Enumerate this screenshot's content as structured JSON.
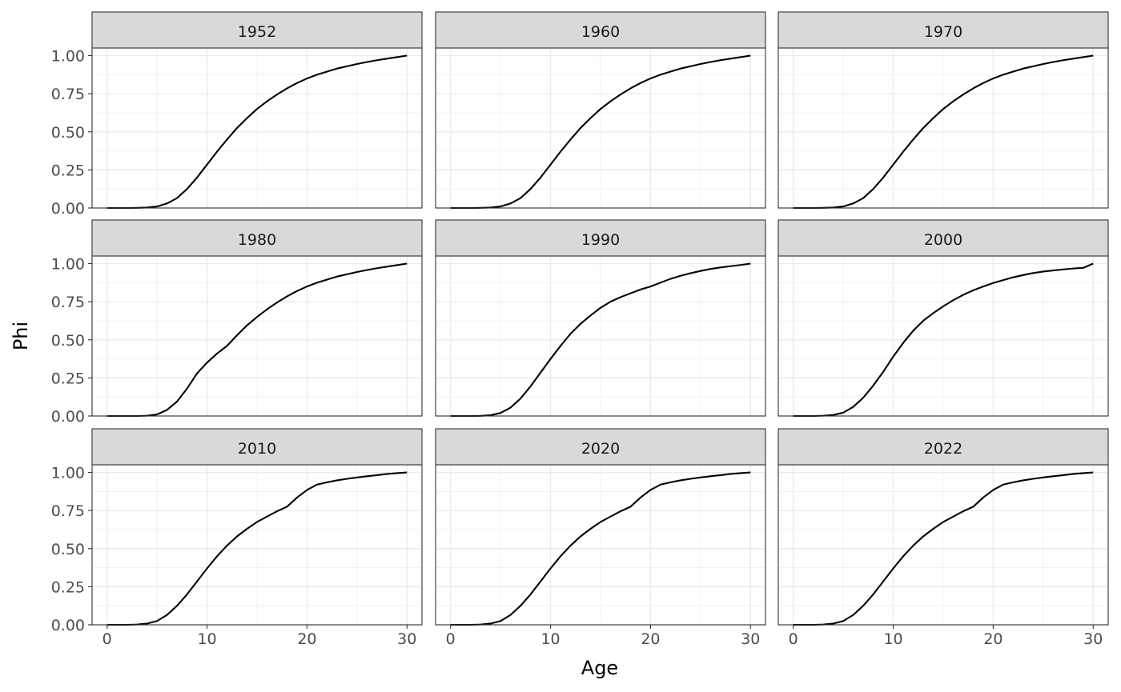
{
  "chart_data": {
    "type": "line",
    "layout": "facet-grid 3x3",
    "xlabel": "Age",
    "ylabel": "Phi",
    "xlim": [
      -1.5,
      31.5
    ],
    "ylim": [
      0,
      1.05
    ],
    "x_ticks": [
      0,
      10,
      20,
      30
    ],
    "y_ticks": [
      0.0,
      0.25,
      0.5,
      0.75,
      1.0
    ],
    "y_tick_labels": [
      "0.00",
      "0.25",
      "0.50",
      "0.75",
      "1.00"
    ],
    "x_tick_labels": [
      "0",
      "10",
      "20",
      "30"
    ],
    "x": [
      0,
      1,
      2,
      3,
      4,
      5,
      6,
      7,
      8,
      9,
      10,
      11,
      12,
      13,
      14,
      15,
      16,
      17,
      18,
      19,
      20,
      21,
      22,
      23,
      24,
      25,
      26,
      27,
      28,
      29,
      30
    ],
    "panels": [
      {
        "title": "1952",
        "values": [
          0,
          0,
          0,
          0.001,
          0.003,
          0.01,
          0.03,
          0.065,
          0.125,
          0.2,
          0.285,
          0.37,
          0.45,
          0.525,
          0.59,
          0.65,
          0.7,
          0.745,
          0.785,
          0.82,
          0.85,
          0.875,
          0.895,
          0.915,
          0.93,
          0.945,
          0.958,
          0.97,
          0.98,
          0.99,
          1.0
        ]
      },
      {
        "title": "1960",
        "values": [
          0,
          0,
          0,
          0.001,
          0.003,
          0.01,
          0.03,
          0.065,
          0.125,
          0.2,
          0.285,
          0.37,
          0.45,
          0.525,
          0.59,
          0.65,
          0.7,
          0.745,
          0.785,
          0.82,
          0.85,
          0.875,
          0.895,
          0.915,
          0.93,
          0.945,
          0.958,
          0.97,
          0.98,
          0.99,
          1.0
        ]
      },
      {
        "title": "1970",
        "values": [
          0,
          0,
          0,
          0.001,
          0.003,
          0.01,
          0.03,
          0.065,
          0.125,
          0.2,
          0.285,
          0.37,
          0.45,
          0.525,
          0.59,
          0.65,
          0.7,
          0.745,
          0.785,
          0.82,
          0.85,
          0.875,
          0.895,
          0.915,
          0.93,
          0.945,
          0.958,
          0.97,
          0.98,
          0.99,
          1.0
        ]
      },
      {
        "title": "1980",
        "values": [
          0,
          0,
          0,
          0,
          0.002,
          0.01,
          0.04,
          0.095,
          0.18,
          0.28,
          0.35,
          0.41,
          0.46,
          0.53,
          0.595,
          0.65,
          0.7,
          0.745,
          0.785,
          0.82,
          0.85,
          0.875,
          0.895,
          0.915,
          0.93,
          0.945,
          0.958,
          0.97,
          0.98,
          0.99,
          1.0
        ]
      },
      {
        "title": "1990",
        "values": [
          0,
          0,
          0,
          0.001,
          0.005,
          0.02,
          0.055,
          0.115,
          0.195,
          0.285,
          0.375,
          0.46,
          0.54,
          0.605,
          0.66,
          0.71,
          0.75,
          0.78,
          0.805,
          0.83,
          0.85,
          0.875,
          0.9,
          0.92,
          0.937,
          0.952,
          0.965,
          0.975,
          0.983,
          0.991,
          1.0
        ]
      },
      {
        "title": "2000",
        "values": [
          0,
          0,
          0,
          0.002,
          0.007,
          0.022,
          0.06,
          0.12,
          0.2,
          0.29,
          0.39,
          0.48,
          0.56,
          0.625,
          0.675,
          0.72,
          0.76,
          0.795,
          0.825,
          0.85,
          0.873,
          0.892,
          0.91,
          0.925,
          0.938,
          0.948,
          0.955,
          0.962,
          0.968,
          0.972,
          1.0
        ]
      },
      {
        "title": "2010",
        "values": [
          0,
          0,
          0,
          0.002,
          0.008,
          0.025,
          0.065,
          0.125,
          0.2,
          0.285,
          0.37,
          0.45,
          0.52,
          0.58,
          0.63,
          0.675,
          0.71,
          0.745,
          0.775,
          0.835,
          0.885,
          0.92,
          0.935,
          0.948,
          0.958,
          0.967,
          0.975,
          0.982,
          0.99,
          0.995,
          1.0
        ]
      },
      {
        "title": "2020",
        "values": [
          0,
          0,
          0,
          0.002,
          0.008,
          0.025,
          0.065,
          0.125,
          0.2,
          0.285,
          0.37,
          0.45,
          0.52,
          0.58,
          0.63,
          0.675,
          0.71,
          0.745,
          0.775,
          0.835,
          0.885,
          0.92,
          0.935,
          0.948,
          0.958,
          0.967,
          0.975,
          0.982,
          0.99,
          0.995,
          1.0
        ]
      },
      {
        "title": "2022",
        "values": [
          0,
          0,
          0,
          0.002,
          0.008,
          0.025,
          0.065,
          0.125,
          0.2,
          0.285,
          0.37,
          0.45,
          0.52,
          0.58,
          0.63,
          0.675,
          0.71,
          0.745,
          0.775,
          0.835,
          0.885,
          0.92,
          0.935,
          0.948,
          0.958,
          0.967,
          0.975,
          0.982,
          0.99,
          0.995,
          1.0
        ]
      }
    ]
  }
}
